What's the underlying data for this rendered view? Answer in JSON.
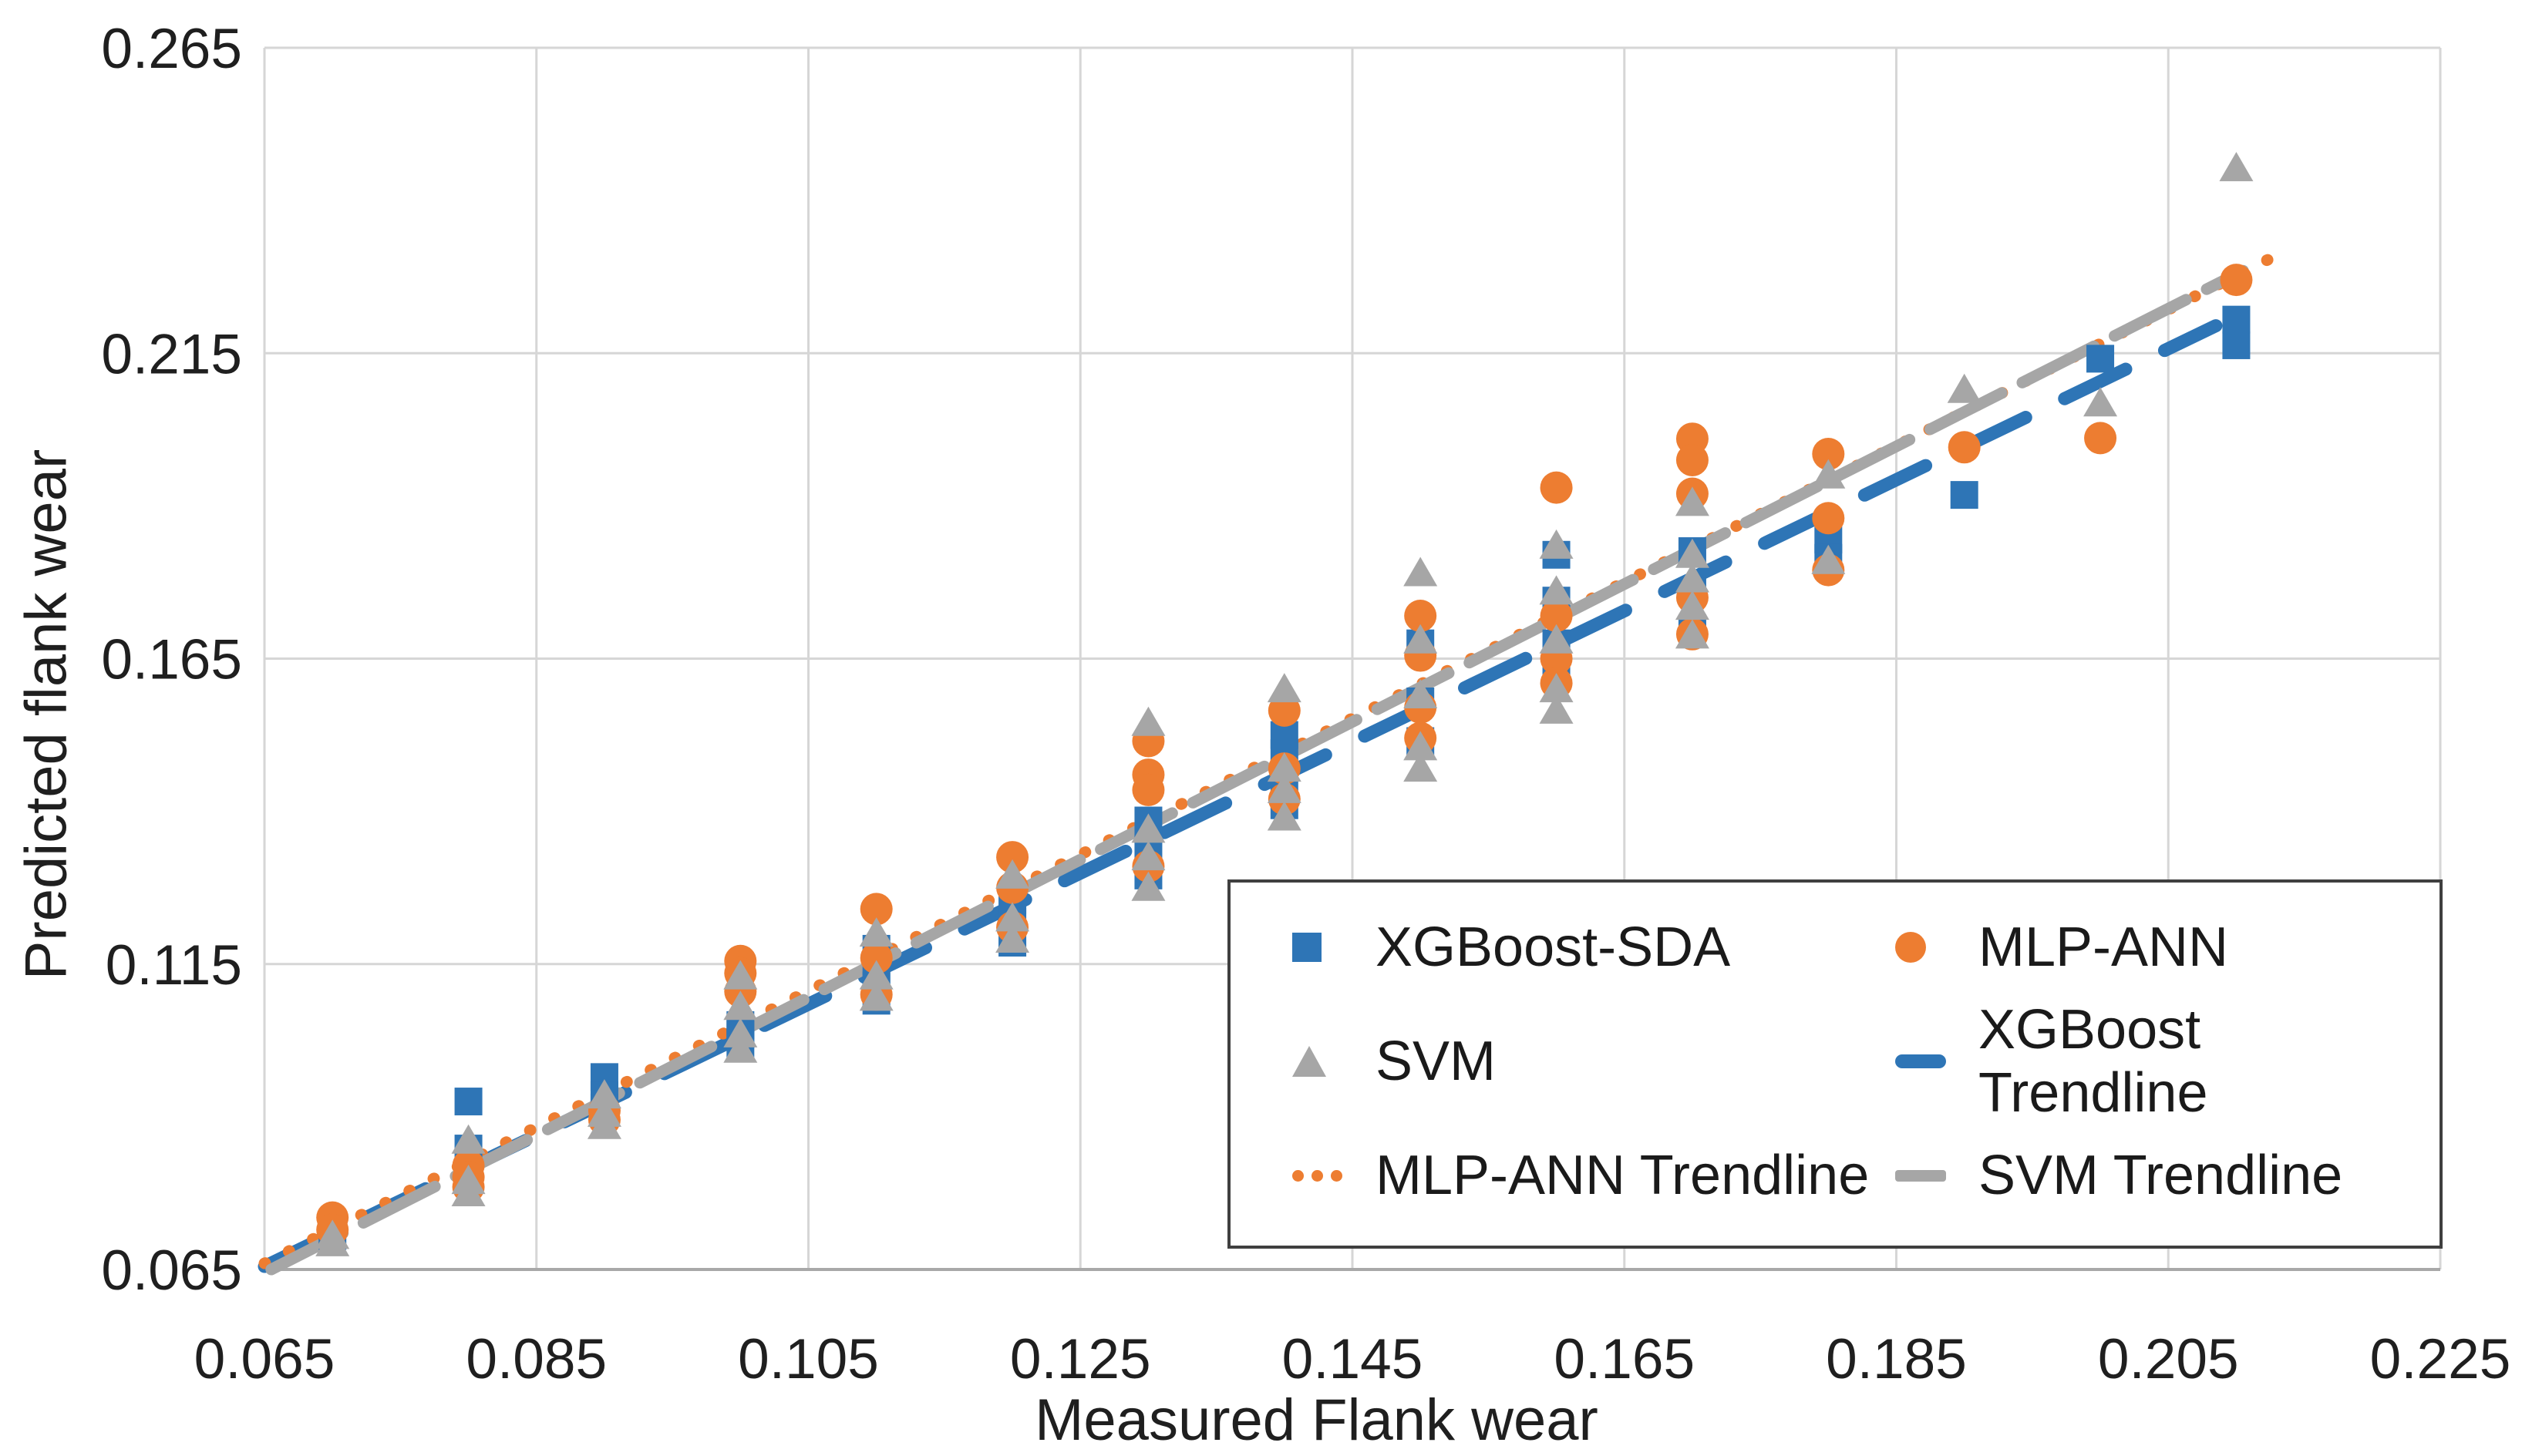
{
  "chart_data": {
    "type": "scatter",
    "title": "",
    "xlabel": "Measured Flank wear",
    "ylabel": "Predicted flank wear",
    "xlim": [
      0.065,
      0.225
    ],
    "ylim": [
      0.065,
      0.265
    ],
    "x_ticks": [
      "0.065",
      "0.085",
      "0.105",
      "0.125",
      "0.145",
      "0.165",
      "0.185",
      "0.205",
      "0.225"
    ],
    "y_ticks": [
      "0.065",
      "0.115",
      "0.165",
      "0.215",
      "0.265"
    ],
    "grid": true,
    "grid_color": "#d6d6d6",
    "axis_line_color": "#a8a8a8",
    "text_color": "#1f1f1f",
    "legend_position": "bottom-right",
    "series": [
      {
        "name": "XGBoost-SDA",
        "marker": "square",
        "color": "#2E75B6",
        "points": [
          [
            0.07,
            0.0725
          ],
          [
            0.07,
            0.0705
          ],
          [
            0.08,
            0.0925
          ],
          [
            0.08,
            0.0848
          ],
          [
            0.08,
            0.0805
          ],
          [
            0.09,
            0.0965
          ],
          [
            0.09,
            0.0935
          ],
          [
            0.09,
            0.0915
          ],
          [
            0.1,
            0.105
          ],
          [
            0.1,
            0.1035
          ],
          [
            0.1,
            0.102
          ],
          [
            0.11,
            0.1175
          ],
          [
            0.11,
            0.114
          ],
          [
            0.11,
            0.1115
          ],
          [
            0.11,
            0.109
          ],
          [
            0.12,
            0.1255
          ],
          [
            0.12,
            0.122
          ],
          [
            0.12,
            0.1185
          ],
          [
            0.13,
            0.1385
          ],
          [
            0.13,
            0.134
          ],
          [
            0.13,
            0.1295
          ],
          [
            0.14,
            0.1525
          ],
          [
            0.14,
            0.1495
          ],
          [
            0.14,
            0.1455
          ],
          [
            0.14,
            0.141
          ],
          [
            0.15,
            0.1675
          ],
          [
            0.15,
            0.158
          ],
          [
            0.15,
            0.1515
          ],
          [
            0.16,
            0.182
          ],
          [
            0.16,
            0.1745
          ],
          [
            0.16,
            0.1675
          ],
          [
            0.16,
            0.162
          ],
          [
            0.17,
            0.1826
          ],
          [
            0.17,
            0.176
          ],
          [
            0.17,
            0.17
          ],
          [
            0.18,
            0.1845
          ],
          [
            0.18,
            0.1815
          ],
          [
            0.19,
            0.1918
          ],
          [
            0.2,
            0.2141
          ],
          [
            0.21,
            0.2205
          ],
          [
            0.21,
            0.2163
          ]
        ]
      },
      {
        "name": "MLP-ANN",
        "marker": "circle",
        "color": "#ED7D31",
        "points": [
          [
            0.07,
            0.0735
          ],
          [
            0.07,
            0.0715
          ],
          [
            0.08,
            0.082
          ],
          [
            0.08,
            0.0801
          ],
          [
            0.08,
            0.0785
          ],
          [
            0.09,
            0.091
          ],
          [
            0.09,
            0.0895
          ],
          [
            0.1,
            0.1155
          ],
          [
            0.1,
            0.1135
          ],
          [
            0.1,
            0.1105
          ],
          [
            0.11,
            0.124
          ],
          [
            0.11,
            0.116
          ],
          [
            0.11,
            0.11
          ],
          [
            0.12,
            0.1325
          ],
          [
            0.12,
            0.1275
          ],
          [
            0.12,
            0.121
          ],
          [
            0.13,
            0.1515
          ],
          [
            0.13,
            0.146
          ],
          [
            0.13,
            0.1435
          ],
          [
            0.13,
            0.131
          ],
          [
            0.14,
            0.1565
          ],
          [
            0.14,
            0.147
          ],
          [
            0.14,
            0.142
          ],
          [
            0.15,
            0.172
          ],
          [
            0.15,
            0.1655
          ],
          [
            0.15,
            0.157
          ],
          [
            0.15,
            0.152
          ],
          [
            0.16,
            0.193
          ],
          [
            0.16,
            0.172
          ],
          [
            0.16,
            0.165
          ],
          [
            0.16,
            0.161
          ],
          [
            0.17,
            0.201
          ],
          [
            0.17,
            0.1975
          ],
          [
            0.17,
            0.192
          ],
          [
            0.17,
            0.175
          ],
          [
            0.17,
            0.169
          ],
          [
            0.18,
            0.1985
          ],
          [
            0.18,
            0.188
          ],
          [
            0.18,
            0.1795
          ],
          [
            0.19,
            0.1996
          ],
          [
            0.2,
            0.2011
          ],
          [
            0.21,
            0.227
          ]
        ]
      },
      {
        "name": "SVM",
        "marker": "triangle",
        "color": "#A6A6A6",
        "points": [
          [
            0.07,
            0.0705
          ],
          [
            0.07,
            0.0693
          ],
          [
            0.08,
            0.0861
          ],
          [
            0.08,
            0.0795
          ],
          [
            0.08,
            0.0775
          ],
          [
            0.09,
            0.0935
          ],
          [
            0.09,
            0.0905
          ],
          [
            0.09,
            0.0885
          ],
          [
            0.1,
            0.113
          ],
          [
            0.1,
            0.108
          ],
          [
            0.1,
            0.1035
          ],
          [
            0.1,
            0.101
          ],
          [
            0.11,
            0.12
          ],
          [
            0.11,
            0.113
          ],
          [
            0.11,
            0.1095
          ],
          [
            0.12,
            0.1295
          ],
          [
            0.12,
            0.1225
          ],
          [
            0.12,
            0.119
          ],
          [
            0.13,
            0.1545
          ],
          [
            0.13,
            0.137
          ],
          [
            0.13,
            0.1325
          ],
          [
            0.13,
            0.1275
          ],
          [
            0.14,
            0.16
          ],
          [
            0.14,
            0.147
          ],
          [
            0.14,
            0.1435
          ],
          [
            0.14,
            0.139
          ],
          [
            0.15,
            0.179
          ],
          [
            0.15,
            0.168
          ],
          [
            0.15,
            0.159
          ],
          [
            0.15,
            0.1505
          ],
          [
            0.15,
            0.147
          ],
          [
            0.16,
            0.1835
          ],
          [
            0.16,
            0.176
          ],
          [
            0.16,
            0.168
          ],
          [
            0.16,
            0.16
          ],
          [
            0.16,
            0.1565
          ],
          [
            0.17,
            0.1905
          ],
          [
            0.17,
            0.182
          ],
          [
            0.17,
            0.178
          ],
          [
            0.17,
            0.1735
          ],
          [
            0.17,
            0.1688
          ],
          [
            0.18,
            0.195
          ],
          [
            0.18,
            0.181
          ],
          [
            0.19,
            0.209
          ],
          [
            0.2,
            0.2068
          ],
          [
            0.21,
            0.2453
          ]
        ]
      }
    ],
    "trendlines": [
      {
        "name": "XGBoost Trendline",
        "color": "#2E75B6",
        "style": "dashed",
        "from": [
          0.065,
          0.0655
        ],
        "to": [
          0.2085,
          0.2195
        ]
      },
      {
        "name": "MLP-ANN Trendline",
        "color": "#ED7D31",
        "style": "dotted",
        "from": [
          0.065,
          0.066
        ],
        "to": [
          0.2125,
          0.2305
        ]
      },
      {
        "name": "SVM Trendline",
        "color": "#A6A6A6",
        "style": "longdash",
        "from": [
          0.0655,
          0.065
        ],
        "to": [
          0.2105,
          0.2285
        ]
      }
    ],
    "legend": {
      "items": [
        {
          "label": "XGBoost-SDA",
          "marker": "square",
          "color": "#2E75B6"
        },
        {
          "label": "MLP-ANN",
          "marker": "circle",
          "color": "#ED7D31"
        },
        {
          "label": "SVM",
          "marker": "triangle",
          "color": "#A6A6A6"
        },
        {
          "label": "XGBoost Trendline",
          "marker": "thickdash",
          "color": "#2E75B6"
        },
        {
          "label": "MLP-ANN Trendline",
          "marker": "dots",
          "color": "#ED7D31"
        },
        {
          "label": "SVM Trendline",
          "marker": "dash",
          "color": "#A6A6A6"
        }
      ]
    }
  }
}
